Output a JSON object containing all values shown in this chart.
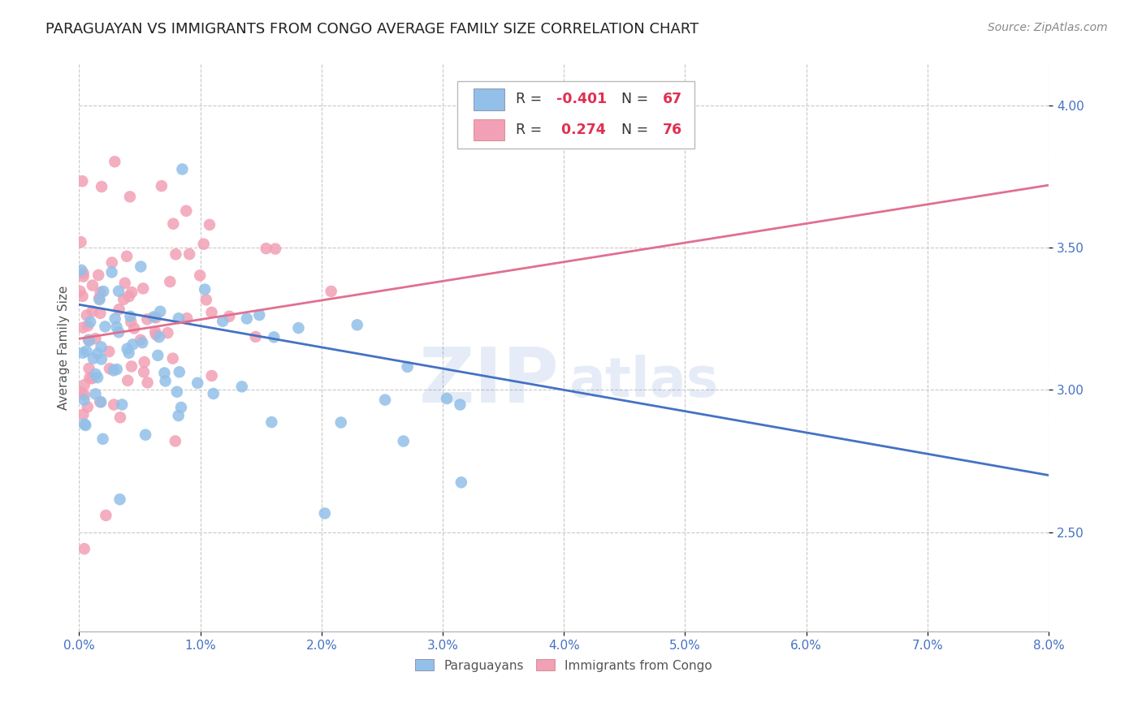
{
  "title": "PARAGUAYAN VS IMMIGRANTS FROM CONGO AVERAGE FAMILY SIZE CORRELATION CHART",
  "source": "Source: ZipAtlas.com",
  "ylabel": "Average Family Size",
  "xmin": 0.0,
  "xmax": 8.0,
  "ymin": 2.15,
  "ymax": 4.15,
  "yticks": [
    2.5,
    3.0,
    3.5,
    4.0
  ],
  "xticks": [
    0.0,
    1.0,
    2.0,
    3.0,
    4.0,
    5.0,
    6.0,
    7.0,
    8.0
  ],
  "blue_color": "#92C0E8",
  "pink_color": "#F2A0B5",
  "blue_line_color": "#4472C4",
  "pink_line_color": "#E07090",
  "legend_R_blue": "-0.401",
  "legend_N_blue": "67",
  "legend_R_pink": "0.274",
  "legend_N_pink": "76",
  "legend_label_blue": "Paraguayans",
  "legend_label_pink": "Immigrants from Congo",
  "watermark_ZIP": "ZIP",
  "watermark_atlas": "atlas",
  "background_color": "#FFFFFF",
  "blue_R": -0.401,
  "blue_N": 67,
  "pink_R": 0.274,
  "pink_N": 76,
  "blue_line_x0": 0.0,
  "blue_line_y0": 3.3,
  "blue_line_x1": 8.0,
  "blue_line_y1": 2.7,
  "pink_line_x0": 0.0,
  "pink_line_y0": 3.18,
  "pink_line_x1": 8.0,
  "pink_line_y1": 3.72,
  "title_fontsize": 13,
  "axis_label_fontsize": 11,
  "tick_fontsize": 11,
  "source_fontsize": 10,
  "watermark_alpha": 0.13
}
